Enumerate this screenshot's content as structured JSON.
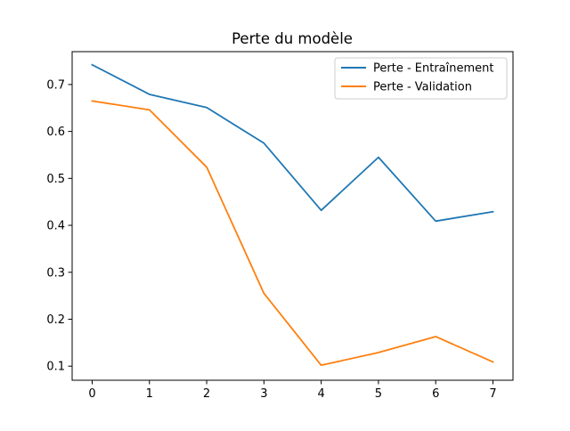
{
  "chart_data": {
    "type": "line",
    "title": "Perte du modèle",
    "xlabel": "",
    "ylabel": "",
    "x": [
      0,
      1,
      2,
      3,
      4,
      5,
      6,
      7
    ],
    "xlim": [
      -0.35,
      7.35
    ],
    "ylim": [
      0.07,
      0.77
    ],
    "xticks": [
      0,
      1,
      2,
      3,
      4,
      5,
      6,
      7
    ],
    "yticks": [
      0.1,
      0.2,
      0.3,
      0.4,
      0.5,
      0.6,
      0.7
    ],
    "grid": false,
    "legend": {
      "position": "top-right"
    },
    "series": [
      {
        "name": "Perte - Entraînement",
        "color": "#1f77b4",
        "values": [
          0.742,
          0.679,
          0.651,
          0.575,
          0.432,
          0.545,
          0.409,
          0.429
        ]
      },
      {
        "name": "Perte - Validation",
        "color": "#ff7f0e",
        "values": [
          0.665,
          0.646,
          0.524,
          0.255,
          0.102,
          0.129,
          0.163,
          0.109
        ]
      }
    ]
  }
}
